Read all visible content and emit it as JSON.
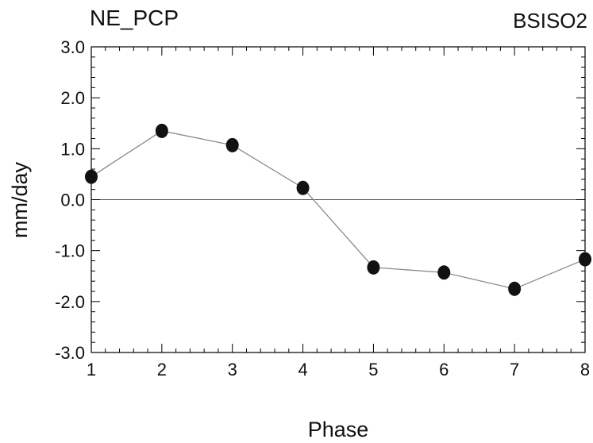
{
  "chart_data": {
    "type": "line",
    "title_left": "NE_PCP",
    "title_right": "BSISO2",
    "xlabel": "Phase",
    "ylabel": "mm/day",
    "x": [
      1,
      2,
      3,
      4,
      5,
      6,
      7,
      8
    ],
    "series": [
      {
        "values": [
          0.45,
          1.35,
          1.07,
          0.23,
          -1.33,
          -1.43,
          -1.75,
          -1.17
        ]
      }
    ],
    "xlim": [
      1,
      8
    ],
    "ylim": [
      -3,
      3
    ],
    "xticks": [
      "1",
      "2",
      "3",
      "4",
      "5",
      "6",
      "7",
      "8"
    ],
    "yticks": [
      "-3.0",
      "-2.0",
      "-1.0",
      "0.0",
      "1.0",
      "2.0",
      "3.0"
    ],
    "zero_line": true,
    "grid": false,
    "colors": {
      "line": "#8a8a8a",
      "marker": "#111111",
      "axis": "#000000"
    }
  }
}
